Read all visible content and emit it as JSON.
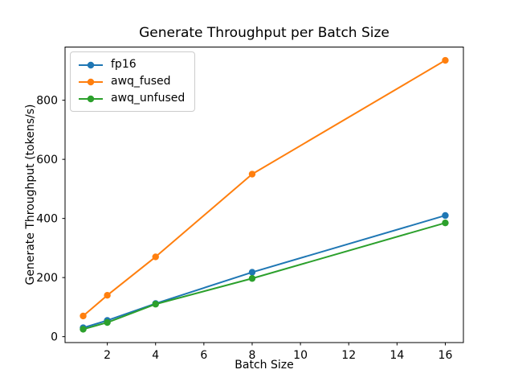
{
  "chart_data": {
    "type": "line",
    "title": "Generate Throughput per Batch Size",
    "xlabel": "Batch Size",
    "ylabel": "Generate Throughput (tokens/s)",
    "x": [
      1,
      2,
      4,
      8,
      16
    ],
    "series": [
      {
        "name": "fp16",
        "color": "#1f77b4",
        "values": [
          30,
          55,
          112,
          218,
          410
        ]
      },
      {
        "name": "awq_fused",
        "color": "#ff7f0e",
        "values": [
          70,
          140,
          270,
          550,
          935
        ]
      },
      {
        "name": "awq_unfused",
        "color": "#2ca02c",
        "values": [
          25,
          48,
          110,
          197,
          385
        ]
      }
    ],
    "xticks": [
      2,
      4,
      6,
      8,
      10,
      12,
      14,
      16
    ],
    "yticks": [
      0,
      200,
      400,
      600,
      800
    ],
    "xlim": [
      0.25,
      16.75
    ],
    "ylim": [
      -20,
      980
    ],
    "grid": false,
    "legend_position": "upper left",
    "marker": "circle",
    "frame_color": "#000000",
    "background_color": "#ffffff"
  }
}
